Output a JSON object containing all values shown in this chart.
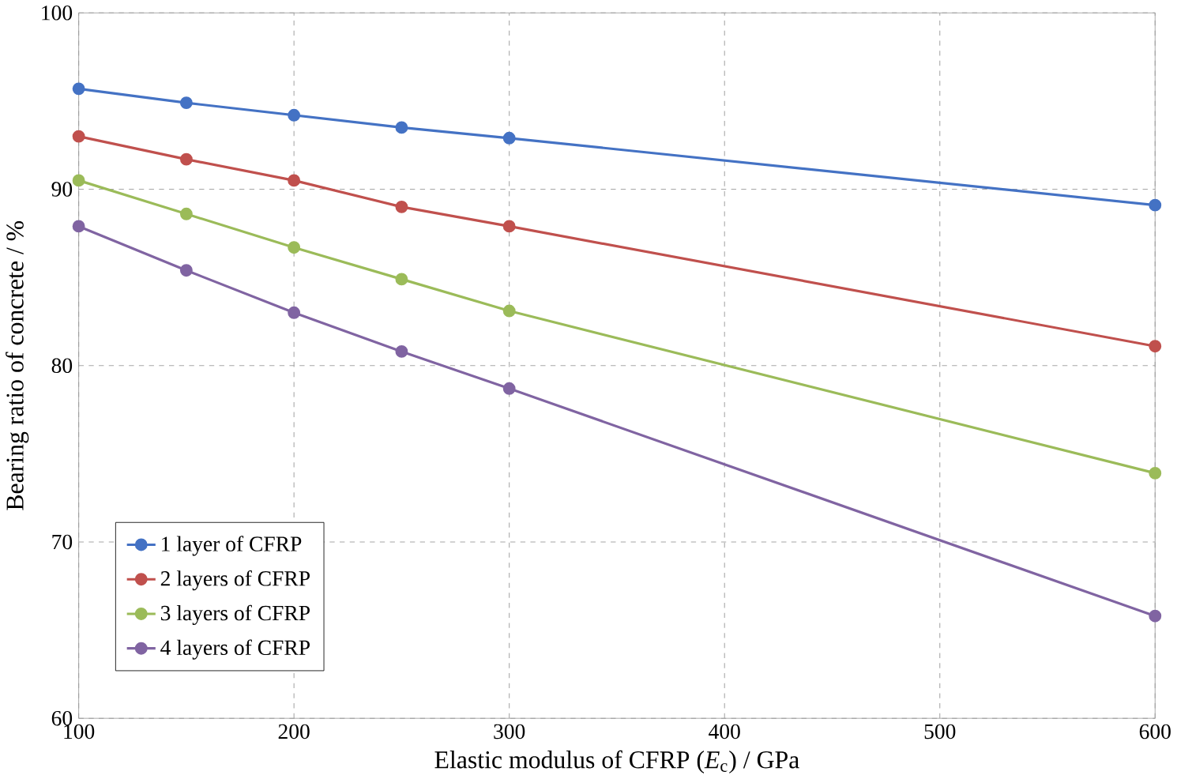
{
  "chart_data": {
    "type": "line",
    "xlabel": "Elastic modulus of CFRP (*E*$_{c}$) / GPa",
    "ylabel": "Bearing ratio of concrete / %",
    "x": [
      100,
      150,
      200,
      250,
      300,
      600
    ],
    "series": [
      {
        "name": "1 layer of CFRP",
        "color": "#4472c4",
        "values": [
          95.7,
          94.9,
          94.2,
          93.5,
          92.9,
          89.1
        ]
      },
      {
        "name": "2 layers of CFRP",
        "color": "#c0504d",
        "values": [
          93.0,
          91.7,
          90.5,
          89.0,
          87.9,
          81.1
        ]
      },
      {
        "name": "3 layers of CFRP",
        "color": "#9bbb59",
        "values": [
          90.5,
          88.6,
          86.7,
          84.9,
          83.1,
          73.9
        ]
      },
      {
        "name": "4 layers of CFRP",
        "color": "#8064a2",
        "values": [
          87.9,
          85.4,
          83.0,
          80.8,
          78.7,
          65.8
        ]
      }
    ],
    "xlim": [
      100,
      600
    ],
    "xticks": [
      100,
      200,
      300,
      400,
      500,
      600
    ],
    "ylim": [
      60,
      100
    ],
    "yticks": [
      60,
      70,
      80,
      90,
      100
    ],
    "grid": true,
    "legend": "bottom left",
    "marker": "circle",
    "line_style": "solid"
  }
}
